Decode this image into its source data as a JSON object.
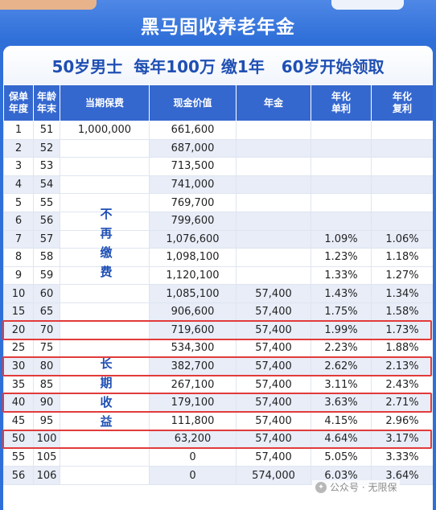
{
  "title": "黑马固收养老年金",
  "subtitle": "50岁男士  每年100万 缴1年   60岁开始领取",
  "columns": [
    "保单\n年度",
    "年龄\n年末",
    "当期保费",
    "现金价值",
    "年金",
    "年化\n单利",
    "年化\n复利"
  ],
  "premium_label_top": [
    "不",
    "再",
    "缴",
    "费"
  ],
  "premium_label_bottom": [
    "长",
    "期",
    "收",
    "益"
  ],
  "rows": [
    {
      "year": "1",
      "age": "51",
      "premium": "1,000,000",
      "cash": "661,600",
      "annuity": "",
      "simple": "",
      "compound": ""
    },
    {
      "year": "2",
      "age": "52",
      "premium": "",
      "cash": "687,000",
      "annuity": "",
      "simple": "",
      "compound": ""
    },
    {
      "year": "3",
      "age": "53",
      "premium": "",
      "cash": "713,500",
      "annuity": "",
      "simple": "",
      "compound": ""
    },
    {
      "year": "4",
      "age": "54",
      "premium": "",
      "cash": "741,000",
      "annuity": "",
      "simple": "",
      "compound": ""
    },
    {
      "year": "5",
      "age": "55",
      "premium": "",
      "cash": "769,700",
      "annuity": "",
      "simple": "",
      "compound": ""
    },
    {
      "year": "6",
      "age": "56",
      "premium": "",
      "cash": "799,600",
      "annuity": "",
      "simple": "",
      "compound": ""
    },
    {
      "year": "7",
      "age": "57",
      "premium": "",
      "cash": "1,076,600",
      "annuity": "",
      "simple": "1.09%",
      "compound": "1.06%"
    },
    {
      "year": "8",
      "age": "58",
      "premium": "",
      "cash": "1,098,100",
      "annuity": "",
      "simple": "1.23%",
      "compound": "1.18%"
    },
    {
      "year": "9",
      "age": "59",
      "premium": "",
      "cash": "1,120,100",
      "annuity": "",
      "simple": "1.33%",
      "compound": "1.27%"
    },
    {
      "year": "10",
      "age": "60",
      "premium": "",
      "cash": "1,085,100",
      "annuity": "57,400",
      "simple": "1.43%",
      "compound": "1.34%"
    },
    {
      "year": "15",
      "age": "65",
      "premium": "",
      "cash": "906,600",
      "annuity": "57,400",
      "simple": "1.75%",
      "compound": "1.58%"
    },
    {
      "year": "20",
      "age": "70",
      "premium": "",
      "cash": "719,600",
      "annuity": "57,400",
      "simple": "1.99%",
      "compound": "1.73%"
    },
    {
      "year": "25",
      "age": "75",
      "premium": "",
      "cash": "534,300",
      "annuity": "57,400",
      "simple": "2.23%",
      "compound": "1.88%"
    },
    {
      "year": "30",
      "age": "80",
      "premium": "",
      "cash": "382,700",
      "annuity": "57,400",
      "simple": "2.62%",
      "compound": "2.13%"
    },
    {
      "year": "35",
      "age": "85",
      "premium": "",
      "cash": "267,100",
      "annuity": "57,400",
      "simple": "3.11%",
      "compound": "2.43%"
    },
    {
      "year": "40",
      "age": "90",
      "premium": "",
      "cash": "179,100",
      "annuity": "57,400",
      "simple": "3.63%",
      "compound": "2.71%"
    },
    {
      "year": "45",
      "age": "95",
      "premium": "",
      "cash": "111,800",
      "annuity": "57,400",
      "simple": "4.15%",
      "compound": "2.96%"
    },
    {
      "year": "50",
      "age": "100",
      "premium": "",
      "cash": "63,200",
      "annuity": "57,400",
      "simple": "4.64%",
      "compound": "3.17%"
    },
    {
      "year": "55",
      "age": "105",
      "premium": "",
      "cash": "0",
      "annuity": "57,400",
      "simple": "5.05%",
      "compound": "3.33%"
    },
    {
      "year": "56",
      "age": "106",
      "premium": "",
      "cash": "0",
      "annuity": "574,000",
      "simple": "6.03%",
      "compound": "3.64%"
    }
  ],
  "shaded_rows": [
    1,
    3,
    5,
    6,
    9,
    10,
    11,
    13,
    15,
    17,
    19
  ],
  "highlighted_rows": [
    11,
    13,
    15,
    17
  ],
  "watermark": "公众号 · 无限保",
  "colors": {
    "header_bg": "#3568cf",
    "highlight_border": "#e23b3b",
    "label_text": "#1f4fb3"
  }
}
